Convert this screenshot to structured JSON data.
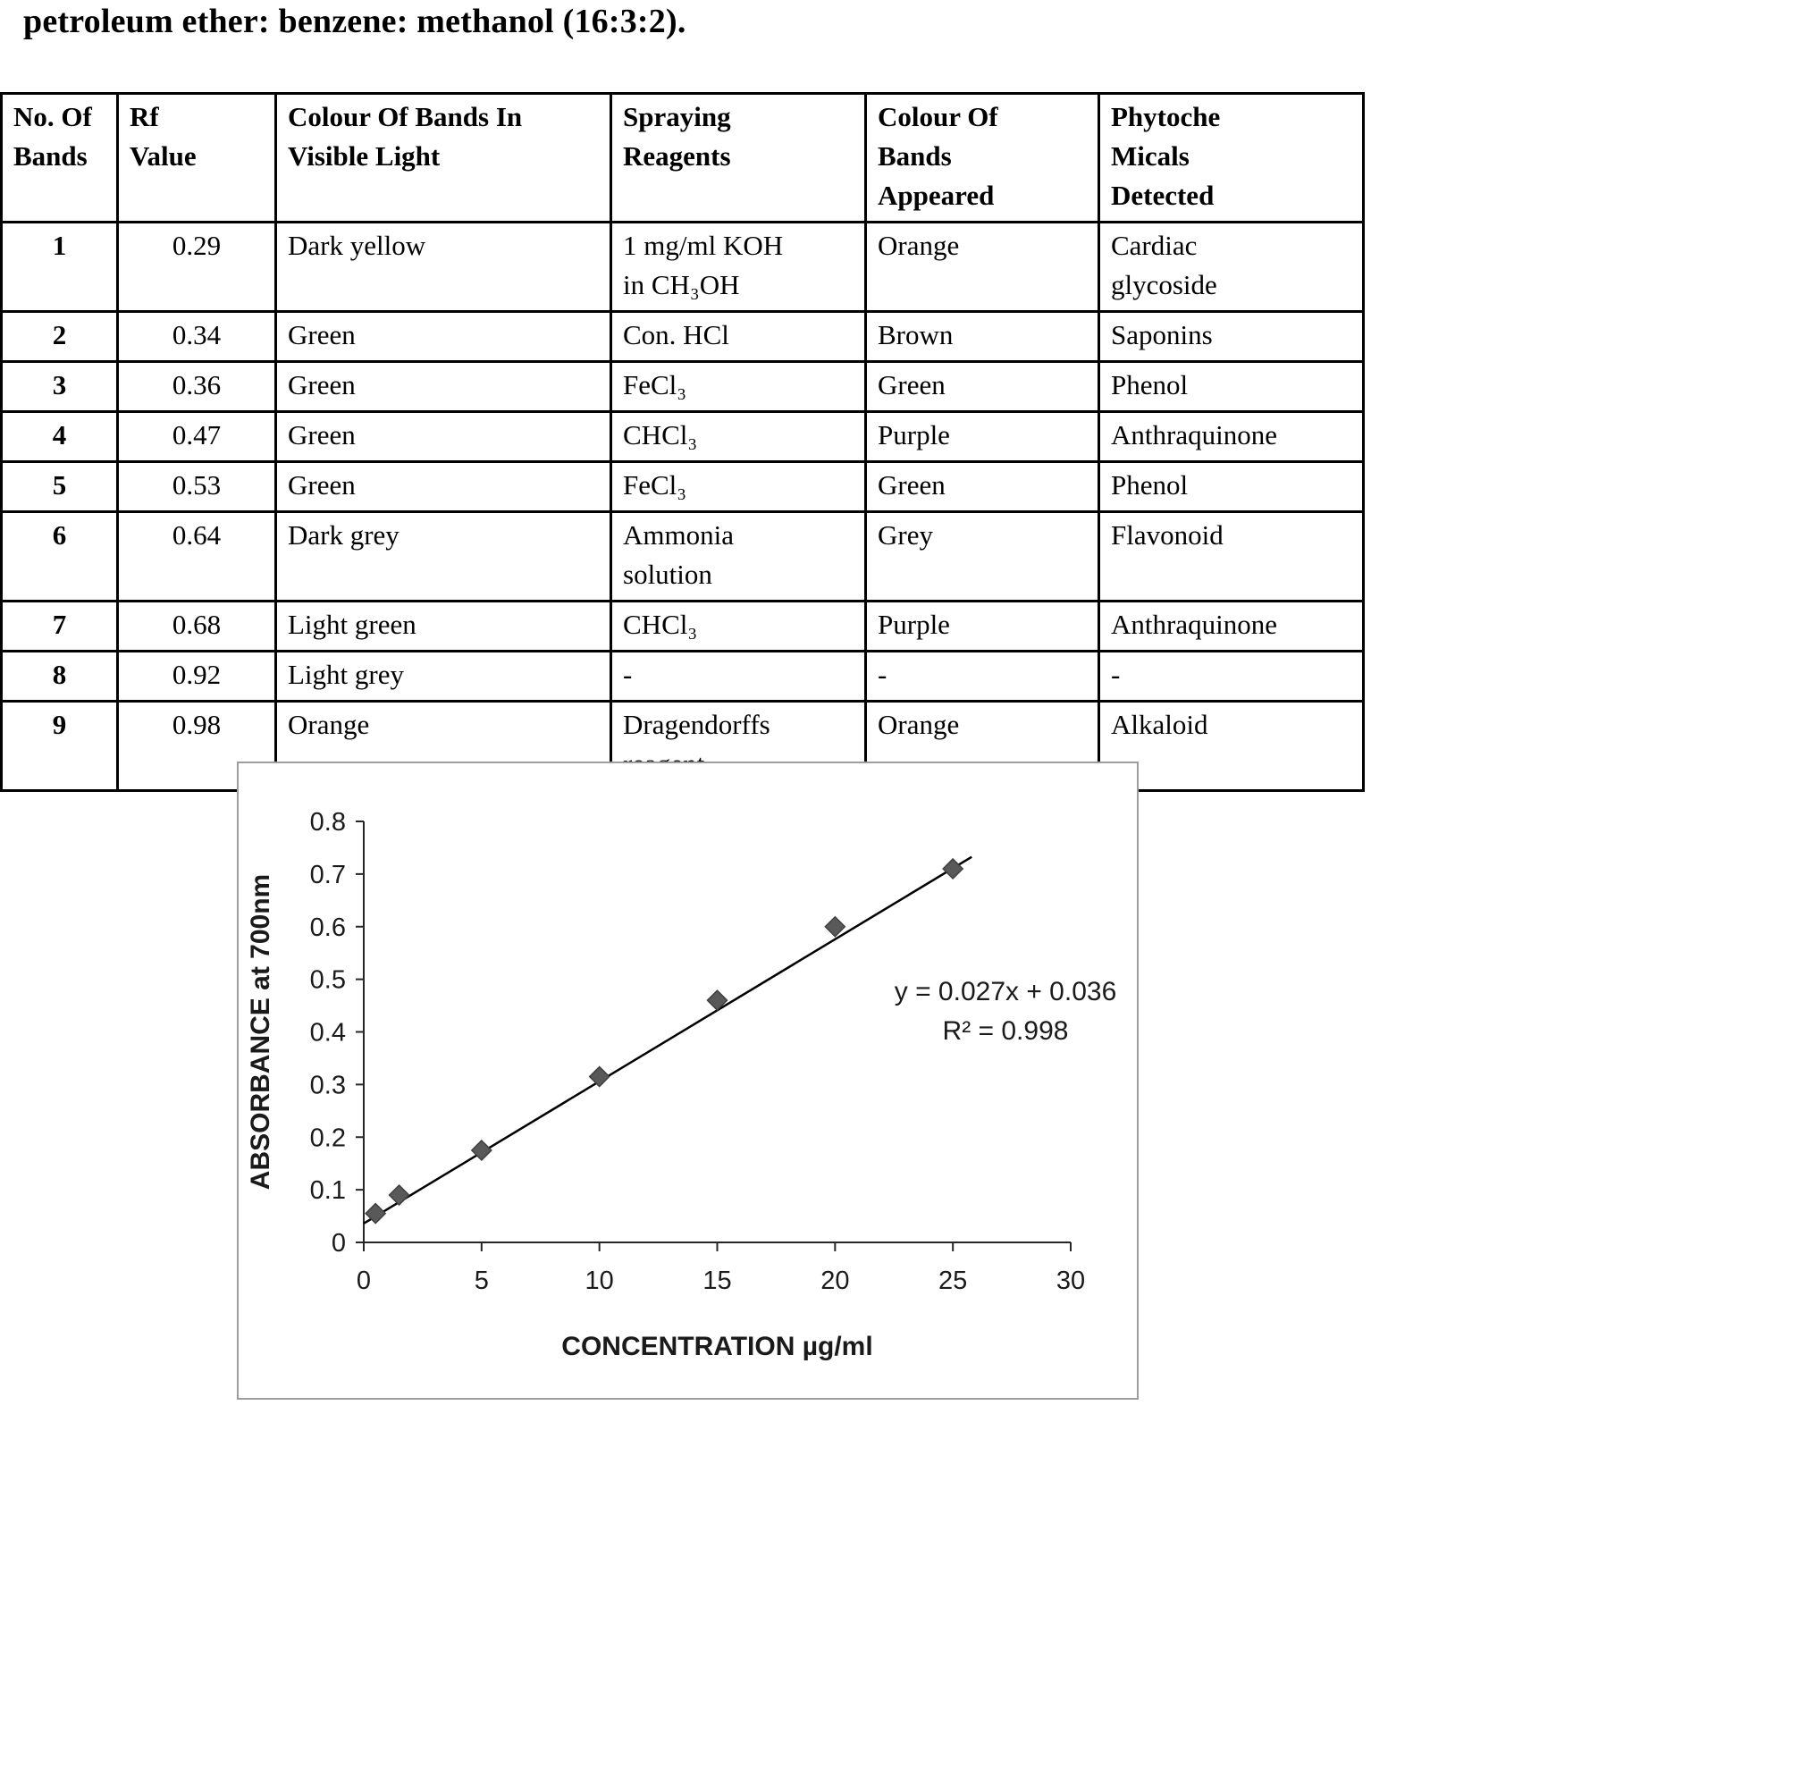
{
  "page": {
    "heading": "petroleum ether: benzene: methanol (16:3:2)."
  },
  "table": {
    "headers": [
      "No. Of\nBands",
      "Rf\nValue",
      "Colour Of Bands In\nVisible Light",
      "Spraying\nReagents",
      "Colour Of\nBands\nAppeared",
      "Phytoche\nMicals\nDetected"
    ],
    "rows": [
      [
        "1",
        "0.29",
        "Dark yellow",
        "1 mg/ml KOH\nin CH₃OH",
        "Orange",
        "Cardiac\nglycoside"
      ],
      [
        "2",
        "0.34",
        "Green",
        "Con. HCl",
        "Brown",
        "Saponins"
      ],
      [
        "3",
        "0.36",
        "Green",
        "FeCl₃",
        "Green",
        "Phenol"
      ],
      [
        "4",
        "0.47",
        "Green",
        "CHCl₃",
        "Purple",
        "Anthraquinone"
      ],
      [
        "5",
        "0.53",
        "Green",
        "FeCl₃",
        "Green",
        "Phenol"
      ],
      [
        "6",
        "0.64",
        "Dark grey",
        "Ammonia\nsolution",
        "Grey",
        "Flavonoid"
      ],
      [
        "7",
        "0.68",
        "Light green",
        "CHCl₃",
        "Purple",
        "Anthraquinone"
      ],
      [
        "8",
        "0.92",
        "Light grey",
        "-",
        "-",
        "-"
      ],
      [
        "9",
        "0.98",
        "Orange",
        "Dragendorffs\nreagent",
        "Orange",
        "Alkaloid"
      ]
    ]
  },
  "chart_data": {
    "type": "scatter",
    "title": "",
    "xlabel": "CONCENTRATION µg/ml",
    "ylabel": "ABSORBANCE at 700nm",
    "x": [
      0.5,
      1.5,
      5,
      10,
      15,
      20,
      25
    ],
    "y": [
      0.055,
      0.09,
      0.175,
      0.315,
      0.46,
      0.6,
      0.71
    ],
    "xlim": [
      0,
      30
    ],
    "ylim": [
      0,
      0.8
    ],
    "xticks": [
      0,
      5,
      10,
      15,
      20,
      25,
      30
    ],
    "yticks": [
      0,
      0.1,
      0.2,
      0.3,
      0.4,
      0.5,
      0.6,
      0.7,
      0.8
    ],
    "grid": false,
    "legend": "none",
    "marker": "diamond",
    "marker_color": "#595959",
    "trendline": {
      "slope": 0.027,
      "intercept": 0.036,
      "x_start": 0,
      "x_end": 25.8,
      "color": "#000000"
    },
    "annotation": {
      "line1": "y = 0.027x + 0.036",
      "line2": "R² = 0.998"
    }
  }
}
